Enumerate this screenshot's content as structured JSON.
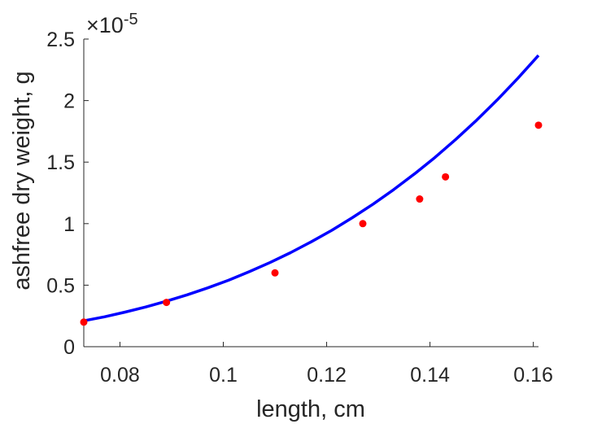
{
  "chart_data": {
    "type": "scatter",
    "title": "",
    "xlabel": "length, cm",
    "ylabel": "ashfree dry weight, g",
    "xlim": [
      0.073,
      0.161
    ],
    "ylim": [
      0,
      2.5
    ],
    "y_exponent_label": {
      "base": "×10",
      "exponent": "-5"
    },
    "xticks": [
      0.08,
      0.1,
      0.12,
      0.14,
      0.16
    ],
    "xtick_labels": [
      "0.08",
      "0.1",
      "0.12",
      "0.14",
      "0.16"
    ],
    "yticks": [
      0,
      0.5,
      1,
      1.5,
      2,
      2.5
    ],
    "ytick_labels": [
      "0",
      "0.5",
      "1",
      "1.5",
      "2",
      "2.5"
    ],
    "grid": false,
    "series": [
      {
        "type": "scatter",
        "color": "#ff0000",
        "x": [
          0.073,
          0.089,
          0.11,
          0.127,
          0.138,
          0.143,
          0.161
        ],
        "y": [
          0.2,
          0.36,
          0.6,
          1.0,
          1.2,
          1.38,
          1.8
        ]
      },
      {
        "type": "line",
        "color": "#0000ff",
        "x": [
          0.073,
          0.077,
          0.081,
          0.085,
          0.089,
          0.093,
          0.097,
          0.101,
          0.105,
          0.109,
          0.113,
          0.117,
          0.121,
          0.125,
          0.129,
          0.133,
          0.137,
          0.141,
          0.145,
          0.149,
          0.153,
          0.157,
          0.161
        ],
        "y": [
          0.21,
          0.243,
          0.281,
          0.323,
          0.37,
          0.421,
          0.478,
          0.54,
          0.609,
          0.683,
          0.764,
          0.852,
          0.946,
          1.049,
          1.159,
          1.277,
          1.404,
          1.54,
          1.685,
          1.84,
          2.005,
          2.181,
          2.367
        ]
      }
    ]
  }
}
